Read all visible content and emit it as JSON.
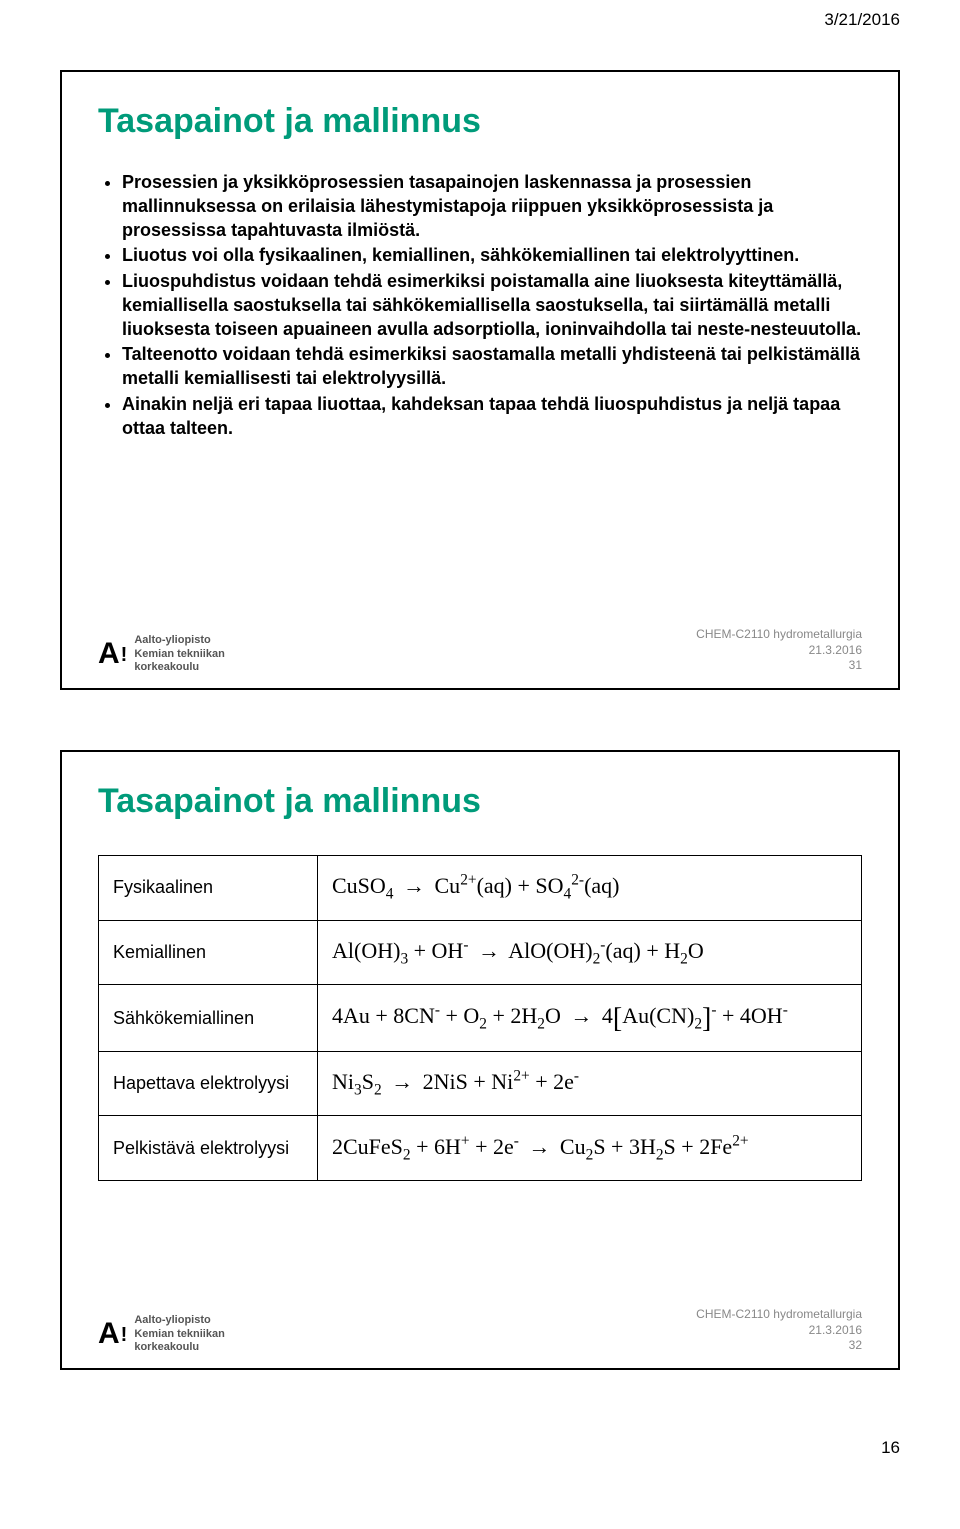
{
  "header": {
    "date": "3/21/2016"
  },
  "colors": {
    "accent": "#009b7a",
    "text": "#000000",
    "muted": "#888888"
  },
  "slide1": {
    "title": "Tasapainot ja mallinnus",
    "bullets": [
      "Prosessien ja yksikköprosessien tasapainojen laskennassa ja prosessien mallinnuksessa on erilaisia lähestymistapoja riippuen yksikköprosessista ja prosessissa tapahtuvasta ilmiöstä.",
      "Liuotus voi olla fysikaalinen, kemiallinen, sähkökemiallinen tai elektrolyyttinen.",
      "Liuospuhdistus voidaan tehdä esimerkiksi poistamalla aine liuoksesta kiteyttämällä, kemiallisella saostuksella tai sähkökemiallisella saostuksella, tai siirtämällä metalli liuoksesta toiseen apuaineen avulla adsorptiolla, ioninvaihdolla tai neste-nesteuutolla.",
      "Talteenotto voidaan tehdä esimerkiksi saostamalla metalli yhdisteenä tai pelkistämällä metalli kemiallisesti tai elektrolyysillä.",
      "Ainakin neljä eri tapaa liuottaa, kahdeksan tapaa tehdä liuospuhdistus ja neljä tapaa ottaa talteen."
    ],
    "footer": {
      "uni1": "Aalto-yliopisto",
      "uni2": "Kemian tekniikan",
      "uni3": "korkeakoulu",
      "course": "CHEM-C2110 hydrometallurgia",
      "date": "21.3.2016",
      "slide_no": "31"
    }
  },
  "slide2": {
    "title": "Tasapainot ja mallinnus",
    "rows": [
      {
        "label": "Fysikaalinen"
      },
      {
        "label": "Kemiallinen"
      },
      {
        "label": "Sähkökemiallinen"
      },
      {
        "label": "Hapettava elektrolyysi"
      },
      {
        "label": "Pelkistävä elektrolyysi"
      }
    ],
    "footer": {
      "uni1": "Aalto-yliopisto",
      "uni2": "Kemian tekniikan",
      "uni3": "korkeakoulu",
      "course": "CHEM-C2110 hydrometallurgia",
      "date": "21.3.2016",
      "slide_no": "32"
    }
  },
  "page_number": "16"
}
